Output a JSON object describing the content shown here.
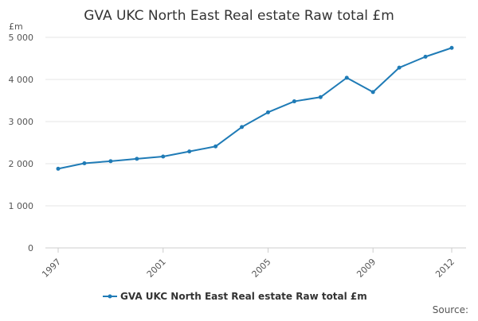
{
  "chart_data": {
    "type": "line",
    "title": "GVA UKC North East Real estate Raw total £m",
    "ylabel": "£m",
    "xlabel": "",
    "x": [
      1997,
      1998,
      1999,
      2000,
      2001,
      2002,
      2003,
      2004,
      2005,
      2006,
      2007,
      2008,
      2009,
      2010,
      2011,
      2012
    ],
    "series": [
      {
        "name": "GVA UKC North East Real estate Raw total £m",
        "values": [
          1880,
          2010,
          2060,
          2115,
          2170,
          2290,
          2410,
          2870,
          3220,
          3480,
          3580,
          4040,
          3700,
          4280,
          4540,
          4750
        ],
        "color": "#1f7bb6"
      }
    ],
    "ylim": [
      0,
      5000
    ],
    "yticks": [
      0,
      1000,
      2000,
      3000,
      4000,
      5000
    ],
    "ytick_labels": [
      "0",
      "1 000",
      "2 000",
      "3 000",
      "4 000",
      "5 000"
    ],
    "xticks": [
      1997,
      2001,
      2005,
      2009,
      2012
    ],
    "xtick_labels": [
      "1997",
      "2001",
      "2005",
      "2009",
      "2012"
    ],
    "grid": true,
    "legend_position": "bottom-center",
    "source_label": "Source:"
  }
}
